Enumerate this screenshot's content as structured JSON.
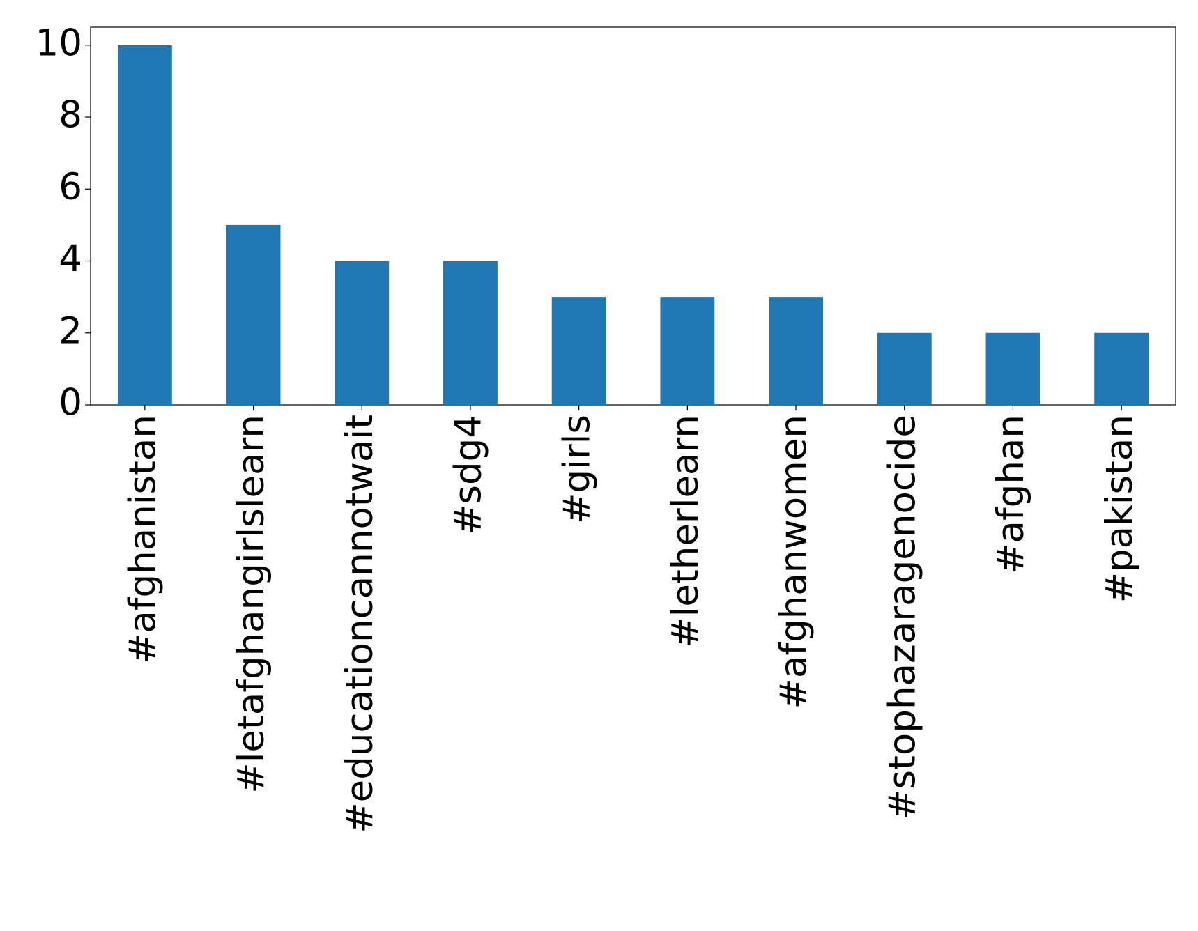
{
  "chart_data": {
    "type": "bar",
    "categories": [
      "#afghanistan",
      "#letafghangirlslearn",
      "#educationcannotwait",
      "#sdg4",
      "#girls",
      "#letherlearn",
      "#afghanwomen",
      "#stophazaragenocide",
      "#afghan",
      "#pakistan"
    ],
    "values": [
      10,
      5,
      4,
      4,
      3,
      3,
      3,
      2,
      2,
      2
    ],
    "color": "#1f77b4",
    "ylim": [
      0,
      10.5
    ],
    "yticks": [
      0,
      2,
      4,
      6,
      8,
      10
    ],
    "grid": false
  }
}
